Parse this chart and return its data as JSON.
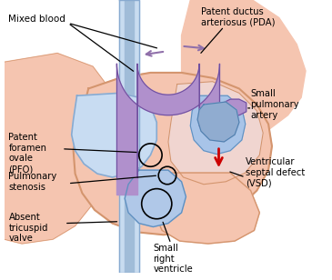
{
  "bg_color": "#ffffff",
  "heart_fill": "#f5c5b0",
  "heart_outline": "#d4956e",
  "ra_fill": "#b8cce8",
  "ra_outline": "#6090c0",
  "rv_fill": "#a0b8e0",
  "la_fill": "#f0d5d0",
  "purple_fill": "#b090cc",
  "purple_dark": "#9070aa",
  "purple_outline": "#7050a0",
  "blue_vessel": "#a0b8d8",
  "red_arrow": "#cc0000",
  "label_color": "#000000",
  "labels": {
    "mixed_blood": "Mixed blood",
    "pda": "Patent ductus\narteriosus (PDA)",
    "small_pa": "Small\npulmonary\nartery",
    "pfo": "Patent\nforamen\novale\n(PFO)",
    "pulm_stenosis": "Pulmonary\nstenosis",
    "absent_tv": "Absent\ntricuspid\nvalve",
    "small_rv": "Small\nright\nventricle",
    "vsd": "Ventricular\nseptal defect\n(VSD)"
  },
  "figsize": [
    3.65,
    3.08
  ],
  "dpi": 100
}
